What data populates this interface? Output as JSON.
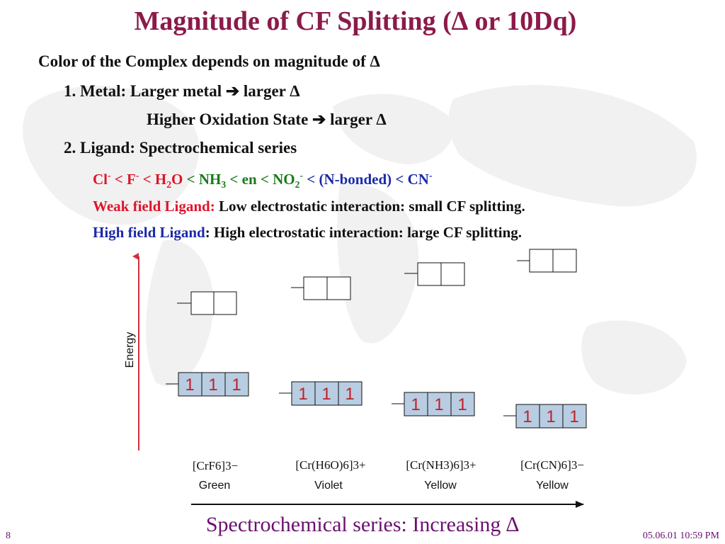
{
  "title": "Magnitude of CF Splitting (∆ or 10Dq)",
  "lines": {
    "l1": "Color of the Complex depends on magnitude of ∆",
    "l2": "1. Metal:  Larger metal ➔ larger ∆",
    "l3": "Higher Oxidation State ➔ larger ∆",
    "l4": "2. Ligand: Spectrochemical series"
  },
  "series": {
    "cl": "Cl",
    "cl_sup": "-",
    "lt1": " < ",
    "f": "F",
    "f_sup": "-",
    "lt2": " < ",
    "h2o_a": "H",
    "h2o_sub": "2",
    "h2o_b": "O",
    "lt3": " < ",
    "nh3_a": "NH",
    "nh3_sub": "3",
    "lt4": " < ",
    "en": "en",
    "lt5": " < ",
    "no2_a": "NO",
    "no2_sub": "2",
    "no2_sup": "-",
    "lt6": " < ",
    "nb": "(N-bonded)",
    "lt7": " < ",
    "cn": "CN",
    "cn_sup": "-"
  },
  "weak": {
    "label": "Weak field Ligand:",
    "text": " Low electrostatic interaction: small CF splitting."
  },
  "high": {
    "label": "High field Ligand",
    "text": ": High electrostatic interaction: large CF splitting."
  },
  "diagram": {
    "energy_label": "Energy",
    "electron_symbol": "1",
    "complexes": [
      {
        "formula": "[CrF6]3−",
        "color_name": "Green"
      },
      {
        "formula": "[Cr(H6O)6]3+",
        "color_name": "Violet"
      },
      {
        "formula": "[Cr(NH3)6]3+",
        "color_name": "Yellow"
      },
      {
        "formula": "[Cr(CN)6]3−",
        "color_name": "Yellow"
      }
    ]
  },
  "caption": "Spectrochemical series:  Increasing ∆",
  "footer": {
    "page": "8",
    "datetime": "05.06.01 10:59 PM"
  },
  "colors": {
    "title": "#8b1a4a",
    "red": "#e0142a",
    "green": "#1a7a1a",
    "blue": "#1b2aa8",
    "orbital_fill": "#b8cde2"
  }
}
